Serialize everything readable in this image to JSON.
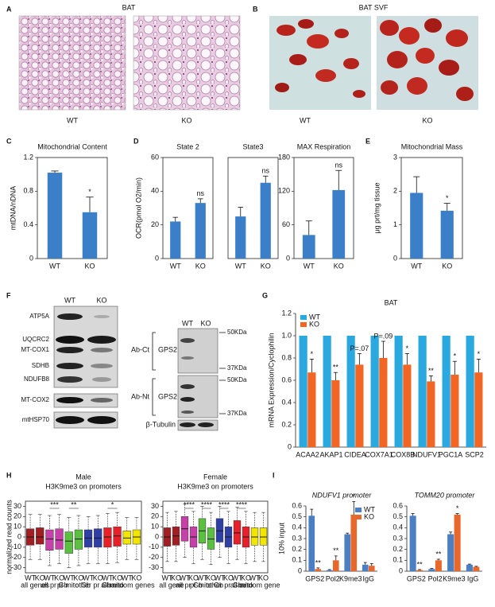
{
  "chart_data": [
    {
      "type": "bar",
      "panel": "C",
      "title": "Mitochondrial Content",
      "ylabel": "mtDNA/nDNA",
      "categories": [
        "WT",
        "KO"
      ],
      "values": [
        1.02,
        0.55
      ],
      "errors": [
        0.02,
        0.18
      ],
      "annotations": [
        null,
        "*"
      ],
      "color": "#3b7fc8",
      "ylim": [
        0,
        1.2
      ],
      "yticks": [
        0,
        0.4,
        0.8,
        1.2
      ]
    },
    {
      "type": "bar",
      "panel": "D",
      "title": "State 2",
      "ylabel": "OCR(pmol O2/min)",
      "categories": [
        "WT",
        "KO"
      ],
      "values": [
        22,
        33
      ],
      "errors": [
        2.5,
        2.5
      ],
      "annotations": [
        null,
        "ns"
      ],
      "color": "#3b7fc8",
      "ylim": [
        0,
        60
      ],
      "yticks": [
        0,
        20,
        40,
        60
      ]
    },
    {
      "type": "bar",
      "title": "State3",
      "categories": [
        "WT",
        "KO"
      ],
      "values": [
        25,
        45
      ],
      "errors": [
        5.5,
        4
      ],
      "annotations": [
        null,
        "ns"
      ],
      "color": "#3b7fc8",
      "ylim": [
        0,
        60
      ],
      "yticks": []
    },
    {
      "type": "bar",
      "title": "MAX Respiration",
      "categories": [
        "WT",
        "KO"
      ],
      "values": [
        42,
        122
      ],
      "errors": [
        25,
        35
      ],
      "annotations": [
        null,
        "ns"
      ],
      "color": "#3b7fc8",
      "ylim": [
        0,
        180
      ],
      "yticks": [
        0,
        60,
        120,
        180
      ]
    },
    {
      "type": "bar",
      "panel": "E",
      "title": "Mitochondrial Mass",
      "ylabel": "μg prt/mg tissue",
      "categories": [
        "WT",
        "KO"
      ],
      "values": [
        1.95,
        1.42
      ],
      "errors": [
        0.48,
        0.22
      ],
      "annotations": [
        null,
        "*"
      ],
      "color": "#3b7fc8",
      "ylim": [
        0,
        3
      ],
      "yticks": [
        0,
        1,
        2,
        3
      ]
    },
    {
      "type": "bar",
      "panel": "G",
      "title": "BAT",
      "ylabel": "mRNA Expression/Cyclophilin",
      "legend": "upper left",
      "categories": [
        "ACAA2",
        "AKAP1",
        "CIDEA",
        "COX7A1",
        "COX8B",
        "NDUFV1",
        "PGC1A",
        "SCP2"
      ],
      "series": [
        {
          "name": "WT",
          "color": "#29a9e0",
          "values": [
            1,
            1,
            1,
            1,
            1,
            1,
            1,
            1
          ]
        },
        {
          "name": "KO",
          "color": "#f26522",
          "values": [
            0.67,
            0.6,
            0.74,
            0.8,
            0.74,
            0.59,
            0.65,
            0.67
          ],
          "errors": [
            0.12,
            0.07,
            0.1,
            0.15,
            0.1,
            0.05,
            0.12,
            0.12
          ]
        }
      ],
      "annotations": [
        "*",
        "**",
        "P=.07",
        "P=.09",
        "*",
        "**",
        "*",
        "*"
      ],
      "ylim": [
        0,
        1.2
      ],
      "yticks": [
        0,
        0.2,
        0.4,
        0.6,
        0.8,
        {
          "value": 1,
          "label": "1.0"
        },
        1.2
      ]
    },
    {
      "type": "box",
      "panel": "H",
      "title": "Male",
      "subtitle": "H3K9me3 on promoters",
      "ylabel": "normalized read counts",
      "categories": [
        "WT",
        "KO",
        "WT",
        "KO",
        "WT",
        "KO",
        "WT",
        "KO",
        "WT",
        "KO",
        "WT",
        "KO"
      ],
      "groups": [
        "all genes",
        "all pr Gb",
        "pr mito Gb",
        "other pr Gb",
        "all mito",
        "random genes"
      ],
      "series": [
        {
          "color": "#a31e23",
          "values": [
            -22,
            -8,
            0,
            8,
            22
          ]
        },
        {
          "color": "#a31e23",
          "values": [
            -22,
            -7,
            0,
            9,
            22
          ]
        },
        {
          "color": "#c73fa8",
          "values": [
            -28,
            -13,
            -2,
            7,
            21
          ]
        },
        {
          "color": "#c73fa8",
          "values": [
            -26,
            -12,
            -3,
            8,
            22
          ]
        },
        {
          "color": "#5bbf3f",
          "values": [
            -30,
            -16,
            -4,
            5,
            19
          ]
        },
        {
          "color": "#5bbf3f",
          "values": [
            -28,
            -12,
            -2,
            7,
            21
          ]
        },
        {
          "color": "#2e3fa6",
          "values": [
            -26,
            -10,
            -1,
            7,
            20
          ]
        },
        {
          "color": "#2e3fa6",
          "values": [
            -26,
            -10,
            -1,
            8,
            21
          ]
        },
        {
          "color": "#e8202a",
          "values": [
            -26,
            -10,
            0,
            9,
            23
          ]
        },
        {
          "color": "#e8202a",
          "values": [
            -25,
            -9,
            1,
            10,
            24
          ]
        },
        {
          "color": "#f2e600",
          "values": [
            -22,
            -7,
            -1,
            6,
            19
          ]
        },
        {
          "color": "#f2e600",
          "values": [
            -22,
            -7,
            0,
            7,
            19
          ]
        }
      ],
      "annotations": [
        null,
        "***",
        "**",
        null,
        "*",
        null
      ],
      "ylim": [
        -35,
        35
      ],
      "yticks": [
        -30,
        -20,
        -10,
        0,
        10,
        20,
        30
      ]
    },
    {
      "type": "box",
      "title": "Female",
      "subtitle": "H3K9me3 on promoters",
      "categories": [
        "WT",
        "KO",
        "WT",
        "KO",
        "WT",
        "KO",
        "WT",
        "KO",
        "WT",
        "KO",
        "WT",
        "KO"
      ],
      "groups": [
        "all gene",
        "all pr Gb",
        "pr mito Gb",
        "other pr Gb",
        "all mito",
        "random gene"
      ],
      "series": [
        {
          "color": "#a31e23",
          "values": [
            -24,
            -9,
            0,
            9,
            24
          ]
        },
        {
          "color": "#a31e23",
          "values": [
            -24,
            -8,
            1,
            10,
            25
          ]
        },
        {
          "color": "#c73fa8",
          "values": [
            -20,
            -4,
            8,
            20,
            32
          ]
        },
        {
          "color": "#c73fa8",
          "values": [
            -26,
            -10,
            0,
            10,
            25
          ]
        },
        {
          "color": "#5bbf3f",
          "values": [
            -22,
            -6,
            6,
            18,
            30
          ]
        },
        {
          "color": "#5bbf3f",
          "values": [
            -27,
            -12,
            -2,
            9,
            24
          ]
        },
        {
          "color": "#2e3fa6",
          "values": [
            -20,
            -5,
            6,
            18,
            30
          ]
        },
        {
          "color": "#2e3fa6",
          "values": [
            -26,
            -10,
            0,
            10,
            25
          ]
        },
        {
          "color": "#e8202a",
          "values": [
            -22,
            -7,
            4,
            16,
            29
          ]
        },
        {
          "color": "#e8202a",
          "values": [
            -26,
            -10,
            0,
            10,
            25
          ]
        },
        {
          "color": "#f2e600",
          "values": [
            -24,
            -8,
            0,
            9,
            24
          ]
        },
        {
          "color": "#f2e600",
          "values": [
            -24,
            -8,
            0,
            9,
            24
          ]
        }
      ],
      "annotations": [
        null,
        "****",
        "****",
        "****",
        "****",
        null
      ],
      "ylim": [
        -35,
        35
      ],
      "yticks": [
        -30,
        -20,
        -10,
        0,
        10,
        20,
        30
      ]
    },
    {
      "type": "bar",
      "panel": "I",
      "title": "NDUFV1 promoter",
      "ylabel": "10% input",
      "legend": "upper right",
      "categories": [
        "GPS2",
        "Pol2",
        "K9me3",
        "IgG"
      ],
      "series": [
        {
          "name": "WT",
          "color": "#4a7fc4",
          "values": [
            0.51,
            0.01,
            0.34,
            0.06
          ],
          "errors": [
            0.06,
            0.005,
            0.01,
            0.02
          ]
        },
        {
          "name": "KO",
          "color": "#e8672a",
          "values": [
            0.02,
            0.1,
            0.52,
            0.05
          ],
          "errors": [
            0.01,
            0.04,
            0.12,
            0.02
          ]
        }
      ],
      "annotations": [
        "**",
        "**",
        "*",
        null
      ],
      "ylim": [
        0,
        0.6
      ],
      "yticks": [
        0,
        0.1,
        0.2,
        0.3,
        0.4,
        0.5,
        0.6
      ]
    },
    {
      "type": "bar",
      "title": "TOMM20 promoter",
      "categories": [
        "GPS2",
        "Pol2",
        "K9me3",
        "IgG"
      ],
      "series": [
        {
          "name": "WT",
          "color": "#4a7fc4",
          "values": [
            0.51,
            0.02,
            0.34,
            0.06
          ],
          "errors": [
            0.02,
            0.005,
            0.02,
            0.005
          ]
        },
        {
          "name": "KO",
          "color": "#e8672a",
          "values": [
            0.01,
            0.1,
            0.52,
            0.04
          ],
          "errors": [
            0.005,
            0.01,
            0.01,
            0.005
          ]
        }
      ],
      "annotations": [
        "**",
        "**",
        "*",
        null
      ],
      "ylim": [
        0,
        0.6
      ],
      "yticks": [
        0,
        0.1,
        0.2,
        0.3,
        0.4,
        0.5,
        0.6
      ]
    }
  ],
  "figure": {
    "panel_a": {
      "letter": "A",
      "title": "BAT",
      "labels": [
        "WT",
        "KO"
      ]
    },
    "panel_b": {
      "letter": "B",
      "title": "BAT SVF",
      "labels": [
        "WT",
        "KO"
      ]
    },
    "panel_f": {
      "letter": "F",
      "columns": [
        "WT",
        "KO"
      ],
      "bands": [
        "ATP5A",
        "UQCRC2",
        "MT-COX1",
        "SDHB",
        "NDUFB8",
        "MT-COX2",
        "mtHSP70"
      ],
      "right_columns": [
        "WT",
        "KO"
      ],
      "antibodies": [
        "Ab-Ct",
        "Ab-Nt"
      ],
      "protein": [
        "GPS2",
        "GPS2"
      ],
      "loading": "β-Tubulin",
      "markers": [
        "50KDa",
        "37KDa",
        "50KDa",
        "37KDa"
      ]
    }
  }
}
